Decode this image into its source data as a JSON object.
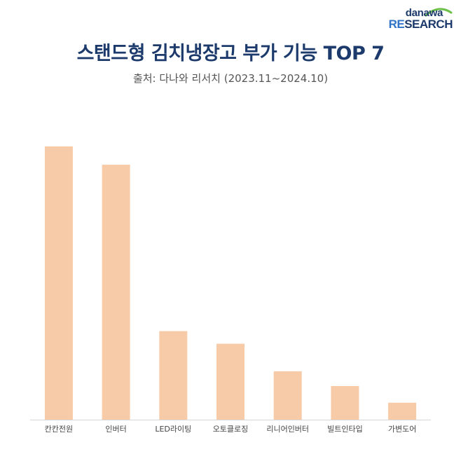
{
  "logo": {
    "top_text": "danawa",
    "bottom_prefix": "RE",
    "bottom_rest": "SEARCH"
  },
  "header": {
    "title": "스탠드형 김치냉장고 부가 기능 TOP 7",
    "subtitle": "출처: 다나와 리서치 (2023.11~2024.10)"
  },
  "colors": {
    "title": "#1c3a6b",
    "bar": "#f8cba8",
    "axis": "#d6d6d6",
    "logo_arc": "#6cc04a",
    "logo_accent": "#2f74c9"
  },
  "chart_data": {
    "type": "bar",
    "title": "스탠드형 김치냉장고 부가 기능 TOP 7",
    "subtitle": "출처: 다나와 리서치 (2023.11~2024.10)",
    "categories": [
      "칸칸전원",
      "인버터",
      "LED라이팅",
      "오토클로징",
      "리니어인버터",
      "빌트인타입",
      "가변도어"
    ],
    "values": [
      100,
      93.3,
      32.4,
      27.8,
      17.7,
      12.3,
      6.2
    ],
    "value_unit": "relative height (tallest bar = 100); no y axis printed",
    "ylim": [
      0,
      100
    ],
    "grid": false,
    "legend": "none"
  }
}
